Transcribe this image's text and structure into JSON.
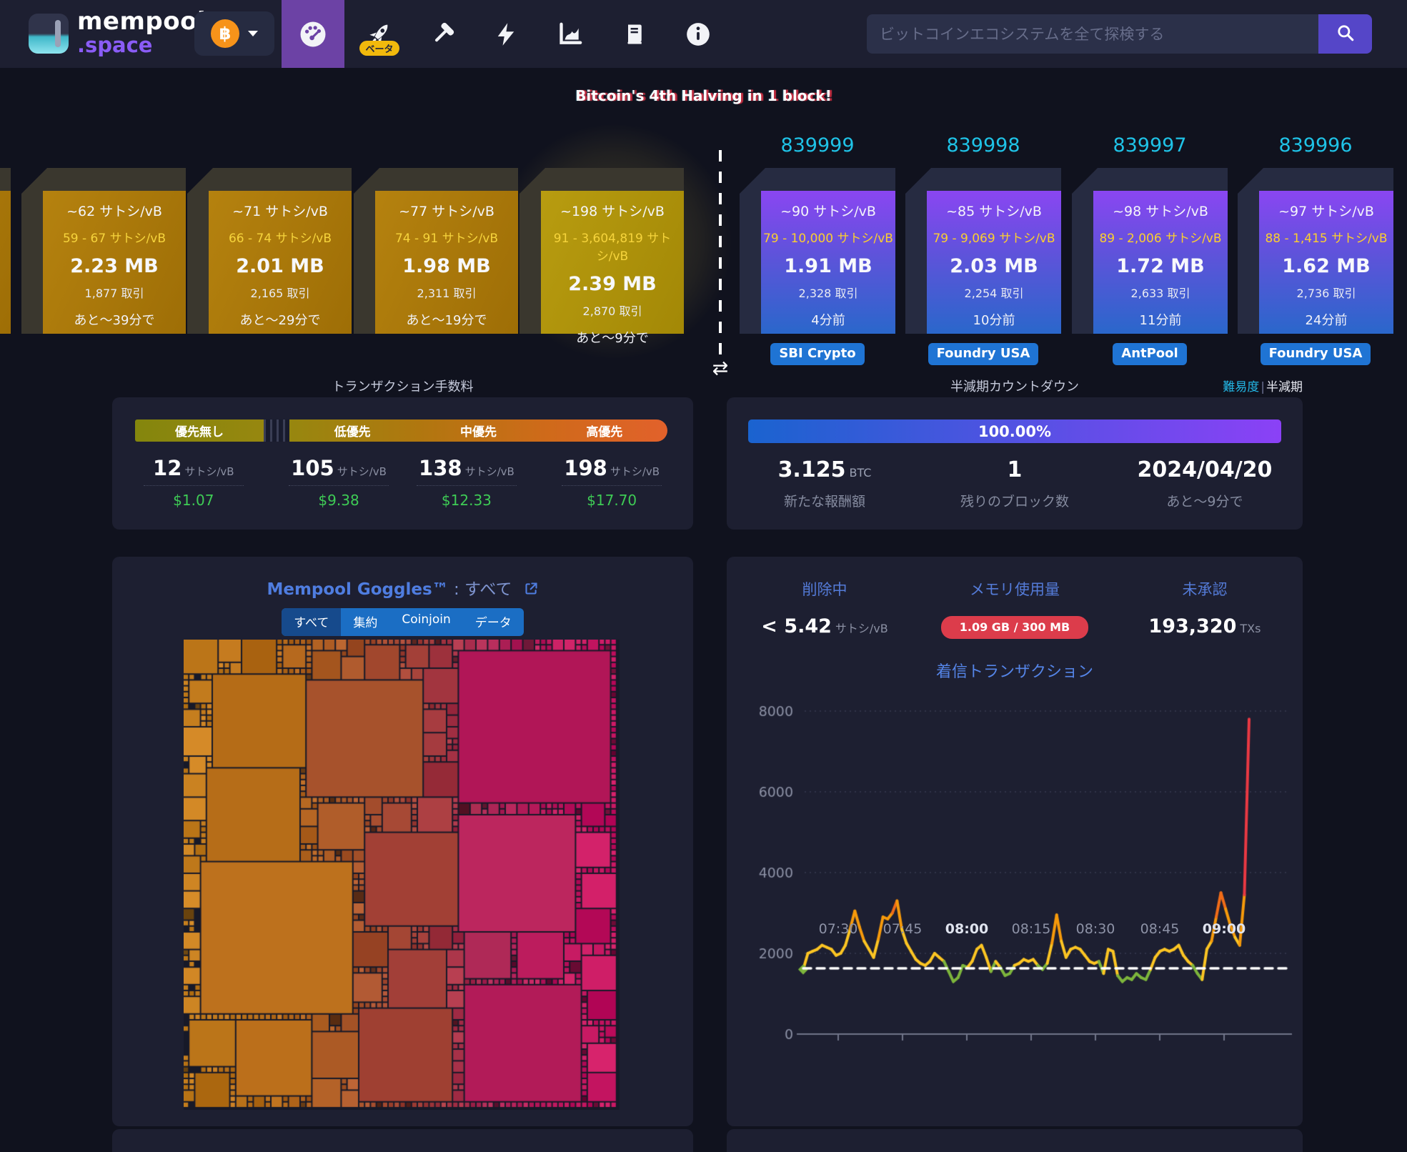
{
  "header": {
    "brand": {
      "line1": "mempool",
      "line2": ".space"
    },
    "currency": {
      "symbol": "฿",
      "name": "Bitcoin"
    },
    "nav": [
      {
        "icon": "gauge-icon",
        "active": true
      },
      {
        "icon": "rocket-icon",
        "badge": "ベータ"
      },
      {
        "icon": "hammer-icon"
      },
      {
        "icon": "lightning-icon"
      },
      {
        "icon": "chart-icon"
      },
      {
        "icon": "docs-icon"
      },
      {
        "icon": "info-icon"
      }
    ],
    "search": {
      "placeholder": "ビットコインエコシステムを全て探検する",
      "button_icon": "magnifier-icon"
    }
  },
  "banner": "Bitcoin's 4th Halving in 1 block!",
  "mempool_blocks": [
    {
      "median": "~62 サトシ/vB",
      "range": "59 - 67 サトシ/vB",
      "size": "2.23 MB",
      "txs": "1,877 取引",
      "eta": "あと〜39分で"
    },
    {
      "median": "~71 サトシ/vB",
      "range": "66 - 74 サトシ/vB",
      "size": "2.01 MB",
      "txs": "2,165 取引",
      "eta": "あと〜29分で"
    },
    {
      "median": "~77 サトシ/vB",
      "range": "74 - 91 サトシ/vB",
      "size": "1.98 MB",
      "txs": "2,311 取引",
      "eta": "あと〜19分で"
    },
    {
      "median": "~198 サトシ/vB",
      "range": "91 - 3,604,819 サトシ/vB",
      "size": "2.39 MB",
      "txs": "2,870 取引",
      "eta": "あと〜9分で"
    }
  ],
  "mined_blocks": [
    {
      "height": "839999",
      "median": "~90 サトシ/vB",
      "range": "79 - 10,000 サトシ/vB",
      "size": "1.91 MB",
      "txs": "2,328 取引",
      "time": "4分前",
      "pool": "SBI Crypto"
    },
    {
      "height": "839998",
      "median": "~85 サトシ/vB",
      "range": "79 - 9,069 サトシ/vB",
      "size": "2.03 MB",
      "txs": "2,254 取引",
      "time": "10分前",
      "pool": "Foundry USA"
    },
    {
      "height": "839997",
      "median": "~98 サトシ/vB",
      "range": "89 - 2,006 サトシ/vB",
      "size": "1.72 MB",
      "txs": "2,633 取引",
      "time": "11分前",
      "pool": "AntPool"
    },
    {
      "height": "839996",
      "median": "~97 サトシ/vB",
      "range": "88 - 1,415 サトシ/vB",
      "size": "1.62 MB",
      "txs": "2,736 取引",
      "time": "24分前",
      "pool": "Foundry USA"
    }
  ],
  "swap_icon": "⇄",
  "fees_panel": {
    "title": "トランザクション手数料",
    "tiers": [
      {
        "label": "優先無し",
        "rate": "12",
        "unit": "サトシ/vB",
        "usd": "$1.07"
      },
      {
        "label": "低優先",
        "rate": "105",
        "unit": "サトシ/vB",
        "usd": "$9.38"
      },
      {
        "label": "中優先",
        "rate": "138",
        "unit": "サトシ/vB",
        "usd": "$12.33"
      },
      {
        "label": "高優先",
        "rate": "198",
        "unit": "サトシ/vB",
        "usd": "$17.70"
      }
    ]
  },
  "halving_panel": {
    "title": "半減期カウントダウン",
    "link_difficulty": "難易度",
    "link_separator": "|",
    "link_halving": "半減期",
    "progress": "100.00%",
    "stats": [
      {
        "value": "3.125",
        "unit": "BTC",
        "label": "新たな報酬額"
      },
      {
        "value": "1",
        "unit": "",
        "label": "残りのブロック数"
      },
      {
        "value": "2024/04/20",
        "unit": "",
        "label": "あと〜9分で"
      }
    ]
  },
  "goggles": {
    "title": "Mempool Goggles™",
    "separator": " : ",
    "filter": "すべて",
    "tabs": [
      "すべて",
      "集約",
      "Coinjoin",
      "データ"
    ],
    "active_tab": "すべて",
    "treemap": {
      "type": "treemap",
      "description": "unconfirmed transactions sized by vsize, colored by feerate",
      "color_scale": [
        "#c47e1d",
        "#a85432",
        "#a13c38",
        "#b12458",
        "#c7145e"
      ]
    }
  },
  "mempool_stats": {
    "purging": {
      "label": "削除中",
      "value": "< 5.42",
      "unit": "サトシ/vB"
    },
    "memory": {
      "label": "メモリ使用量",
      "value": "1.09 GB / 300 MB"
    },
    "unconfirmed": {
      "label": "未承認",
      "value": "193,320",
      "unit": "TXs"
    }
  },
  "chart_data": {
    "type": "line",
    "title": "着信トランザクション",
    "x_ticks": [
      {
        "label": "07:30",
        "bold": false
      },
      {
        "label": "07:45",
        "bold": false
      },
      {
        "label": "08:00",
        "bold": true
      },
      {
        "label": "08:15",
        "bold": false
      },
      {
        "label": "08:30",
        "bold": false
      },
      {
        "label": "08:45",
        "bold": false
      },
      {
        "label": "09:00",
        "bold": true
      }
    ],
    "y_ticks": [
      0,
      2000,
      4000,
      6000,
      8000
    ],
    "ylim": [
      0,
      8000
    ],
    "x_start": "07:22",
    "x_end": "09:07",
    "baseline_dashed": 1630,
    "grid": "dotted horizontal",
    "series": [
      {
        "name": "着信トランザクション",
        "values": [
          1600,
          2000,
          2050,
          2100,
          2200,
          2150,
          2100,
          1950,
          2000,
          2200,
          2600,
          3050,
          2650,
          2300,
          2100,
          1900,
          2350,
          2900,
          2850,
          3000,
          3300,
          2600,
          2250,
          2050,
          1850,
          1750,
          1700,
          1800,
          2000,
          1900,
          1800,
          1550,
          1300,
          1400,
          1700,
          1650,
          1800,
          2100,
          2200,
          1900,
          1550,
          1800,
          1650,
          1450,
          1500,
          1700,
          1750,
          1850,
          1800,
          1850,
          1700,
          1600,
          1750,
          2250,
          2950,
          2300,
          1900,
          2100,
          2150,
          2100,
          1950,
          1800,
          1750,
          1800,
          1500,
          2100,
          2050,
          1450,
          1300,
          1400,
          1350,
          1500,
          1400,
          1350,
          1600,
          1900,
          2050,
          2100,
          2050,
          2100,
          2200,
          1950,
          1800,
          1700,
          1500,
          1350,
          2100,
          2300,
          2900,
          3500,
          3100,
          2700,
          2400,
          2200,
          3450,
          7800
        ]
      }
    ],
    "value_color_scale": [
      {
        "max": 1680,
        "color": "#7db53c"
      },
      {
        "max": 2450,
        "color": "#fcc523"
      },
      {
        "max": 2950,
        "color": "#f69a0b"
      },
      {
        "max": 3450,
        "color": "#f06c18"
      },
      {
        "max": 99999,
        "color": "#ea3943"
      }
    ]
  },
  "colors": {
    "accent_purple": "#6c42a5",
    "height_cyan": "#1fc3e7",
    "pool_badge_blue": "#1f74d4",
    "fee_usd_green": "#3ecb55",
    "memory_red": "#dc3c4b",
    "goggles_blue": "#4f7de0"
  }
}
